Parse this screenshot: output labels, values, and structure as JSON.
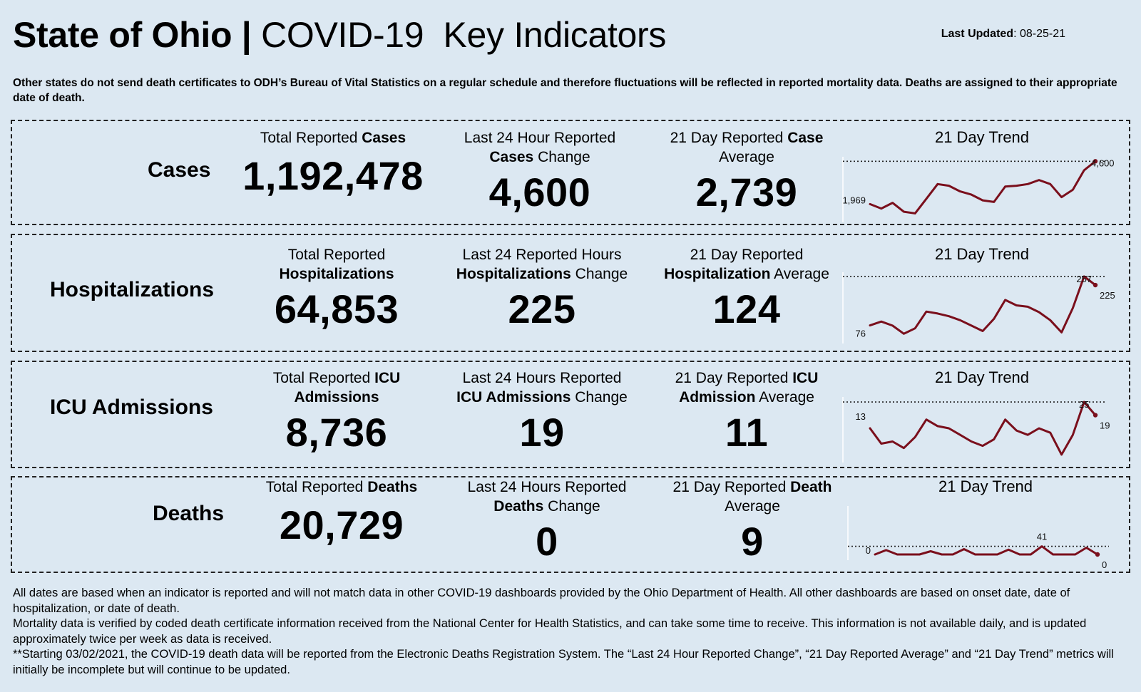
{
  "header": {
    "title_bold": "State of Ohio |",
    "title_rest": " COVID-19  Key Indicators",
    "updated_label": "Last Updated",
    "updated_value": ": 08-25-21"
  },
  "notice": "Other states do not send death certificates to ODH’s Bureau of Vital Statistics on a regular schedule and therefore fluctuations will be reflected in reported mortality data. Deaths are assigned to their appropriate date of death.",
  "rows": {
    "cases": {
      "label": "Cases",
      "total_cap": [
        "Total Reported ",
        "Cases"
      ],
      "total_value": "1,192,478",
      "change_cap1": "Last 24 Hour Reported",
      "change_cap2": [
        "Cases",
        " Change"
      ],
      "change_value": "4,600",
      "avg_cap1": [
        "21 Day Reported ",
        "Case"
      ],
      "avg_cap2": "Average",
      "avg_value": "2,739",
      "trend_title": "21 Day Trend"
    },
    "hosp": {
      "label": "Hospitalizations",
      "total_cap1": "Total Reported",
      "total_cap2": "Hospitalizations",
      "total_value": "64,853",
      "change_cap1": "Last 24 Reported Hours",
      "change_cap2": [
        "Hospitalizations",
        " Change"
      ],
      "change_value": "225",
      "avg_cap1": "21 Day Reported",
      "avg_cap2": [
        "Hospitalization",
        " Average"
      ],
      "avg_value": "124",
      "trend_title": "21 Day Trend"
    },
    "icu": {
      "label": "ICU Admissions",
      "total_cap1": [
        "Total Reported ",
        "ICU"
      ],
      "total_cap2": "Admissions",
      "total_value": "8,736",
      "change_cap1": "Last 24 Hours Reported",
      "change_cap2": [
        "ICU Admissions",
        " Change"
      ],
      "change_value": "19",
      "avg_cap1": [
        "21 Day Reported ",
        "ICU"
      ],
      "avg_cap2": [
        "Admission",
        " Average"
      ],
      "avg_value": "11",
      "trend_title": "21 Day Trend"
    },
    "deaths": {
      "label": "Deaths",
      "total_cap": [
        "Total Reported ",
        "Deaths"
      ],
      "total_value": "20,729",
      "change_cap1": "Last 24 Hours Reported",
      "change_cap2": [
        "Deaths",
        " Change"
      ],
      "change_value": "0",
      "avg_cap1": [
        "21 Day Reported ",
        "Death"
      ],
      "avg_cap2": "Average",
      "avg_value": "9",
      "trend_title": "21 Day Trend"
    }
  },
  "footer": [
    "All dates are based when an indicator is reported and will not match data in other COVID-19 dashboards provided by the Ohio Department of Health. All other dashboards are based on onset date, date of hospitalization, or date of death.",
    "Mortality data is verified by coded death certificate information received from the National Center for Health Statistics, and can take some time to receive. This information is not available daily, and is updated approximately twice per week as data is received.",
    "**Starting 03/02/2021, the COVID-19 death data will be reported from the Electronic Deaths Registration System. The “Last 24 Hour Reported Change”, “21 Day Reported Average” and “21 Day Trend” metrics will initially be incomplete but will continue to be updated."
  ],
  "colors": {
    "background": "#dce8f2",
    "trend_line": "#7a0f1c"
  },
  "chart_data": [
    {
      "type": "line",
      "id": "cases",
      "title": "21 Day Trend",
      "x": [
        1,
        2,
        3,
        4,
        5,
        6,
        7,
        8,
        9,
        10,
        11,
        12,
        13,
        14,
        15,
        16,
        17,
        18,
        19,
        20,
        21
      ],
      "values": [
        1969,
        1700,
        2050,
        1500,
        1400,
        2300,
        3200,
        3100,
        2750,
        2550,
        2200,
        2100,
        3050,
        3100,
        3200,
        3450,
        3200,
        2400,
        2850,
        4050,
        4600
      ],
      "labels": {
        "first": "1,969",
        "last": "4,600"
      },
      "reference_line": "max",
      "ylim": [
        1200,
        4700
      ]
    },
    {
      "type": "line",
      "id": "hospitalizations",
      "title": "21 Day Trend",
      "x": [
        1,
        2,
        3,
        4,
        5,
        6,
        7,
        8,
        9,
        10,
        11,
        12,
        13,
        14,
        15,
        16,
        17,
        18,
        19,
        20,
        21
      ],
      "values": [
        76,
        90,
        75,
        45,
        65,
        127,
        120,
        110,
        95,
        75,
        55,
        100,
        170,
        150,
        145,
        125,
        95,
        50,
        140,
        257,
        225
      ],
      "labels": {
        "first": "76",
        "max": "257",
        "last": "225"
      },
      "reference_line": "max",
      "ylim": [
        30,
        262
      ]
    },
    {
      "type": "line",
      "id": "icu",
      "title": "21 Day Trend",
      "x": [
        1,
        2,
        3,
        4,
        5,
        6,
        7,
        8,
        9,
        10,
        11,
        12,
        13,
        14,
        15,
        16,
        17,
        18,
        19,
        20,
        21
      ],
      "values": [
        13,
        6,
        7,
        4,
        9,
        17,
        14,
        13,
        10,
        7,
        5,
        8,
        17,
        12,
        10,
        13,
        11,
        1,
        10,
        25,
        19
      ],
      "labels": {
        "first": "13",
        "max": "25",
        "last": "19"
      },
      "reference_line": "max",
      "ylim": [
        0,
        26
      ]
    },
    {
      "type": "line",
      "id": "deaths",
      "title": "21 Day Trend",
      "x": [
        1,
        2,
        3,
        4,
        5,
        6,
        7,
        8,
        9,
        10,
        11,
        12,
        13,
        14,
        15,
        16,
        17,
        18,
        19,
        20,
        21
      ],
      "values": [
        0,
        22,
        0,
        0,
        0,
        16,
        0,
        0,
        27,
        0,
        0,
        0,
        24,
        0,
        0,
        41,
        0,
        0,
        0,
        34,
        0
      ],
      "labels": {
        "first": "0",
        "max": "41",
        "last": "0"
      },
      "reference_line": "max",
      "ylim": [
        0,
        230
      ]
    }
  ]
}
